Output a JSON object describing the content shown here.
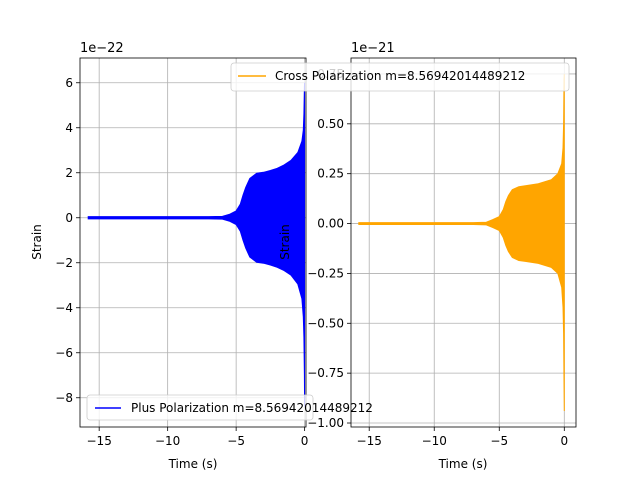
{
  "chart_data": [
    {
      "type": "line",
      "title": "",
      "xlabel": "Time (s)",
      "ylabel": "Strain",
      "offset_text": "1e−22",
      "scale": 1e-22,
      "xlim": [
        -16.4,
        0.1
      ],
      "ylim": [
        -9.3,
        7.1
      ],
      "xticks": [
        -15,
        -10,
        -5,
        0
      ],
      "xtick_labels": [
        "−15",
        "−10",
        "−5",
        "0"
      ],
      "yticks": [
        -8,
        -6,
        -4,
        -2,
        0,
        2,
        4,
        6
      ],
      "ytick_labels": [
        "−8",
        "−6",
        "−4",
        "−2",
        "0",
        "2",
        "4",
        "6"
      ],
      "grid": true,
      "legend_position": "lower left",
      "series": [
        {
          "name": "Plus Polarization m=8.56942014489212",
          "color": "#0000ff",
          "envelope": {
            "t": [
              -15.8,
              -10.0,
              -7.0,
              -6.0,
              -5.5,
              -5.0,
              -4.7,
              -4.5,
              -4.3,
              -4.0,
              -3.5,
              -3.0,
              -2.5,
              -2.0,
              -1.5,
              -1.0,
              -0.5,
              -0.2,
              -0.1,
              -0.05,
              -0.02,
              0.0
            ],
            "upper": [
              0.05,
              0.05,
              0.05,
              0.06,
              0.15,
              0.3,
              0.6,
              1.0,
              1.35,
              1.75,
              1.98,
              2.02,
              2.1,
              2.2,
              2.35,
              2.55,
              2.9,
              3.4,
              3.9,
              4.6,
              5.8,
              6.0
            ],
            "lower": [
              -0.05,
              -0.05,
              -0.05,
              -0.06,
              -0.15,
              -0.3,
              -0.6,
              -1.0,
              -1.35,
              -1.75,
              -1.98,
              -2.02,
              -2.1,
              -2.2,
              -2.35,
              -2.55,
              -2.95,
              -3.6,
              -4.4,
              -5.3,
              -7.0,
              -8.4
            ]
          }
        }
      ]
    },
    {
      "type": "line",
      "title": "",
      "xlabel": "Time (s)",
      "ylabel": "Strain",
      "offset_text": "1e−21",
      "scale": 1e-21,
      "xlim": [
        -16.4,
        0.9
      ],
      "ylim": [
        -1.02,
        0.83
      ],
      "xticks": [
        -15,
        -10,
        -5,
        0
      ],
      "xtick_labels": [
        "−15",
        "−10",
        "−5",
        "0"
      ],
      "yticks": [
        -1.0,
        -0.75,
        -0.5,
        -0.25,
        0.0,
        0.25,
        0.5,
        0.75
      ],
      "ytick_labels": [
        "−1.00",
        "−0.75",
        "−0.50",
        "−0.25",
        "0.00",
        "0.25",
        "0.50",
        "0.75"
      ],
      "grid": true,
      "legend_position": "upper right",
      "series": [
        {
          "name": "Cross Polarization m=8.56942014489212",
          "color": "#ffa500",
          "envelope": {
            "t": [
              -15.8,
              -10.0,
              -7.0,
              -6.0,
              -5.5,
              -5.0,
              -4.7,
              -4.5,
              -4.3,
              -4.0,
              -3.5,
              -3.0,
              -2.5,
              -2.0,
              -1.5,
              -1.0,
              -0.5,
              -0.2,
              -0.1,
              -0.05,
              -0.02,
              0.0
            ],
            "upper": [
              0.005,
              0.005,
              0.005,
              0.007,
              0.02,
              0.035,
              0.07,
              0.11,
              0.14,
              0.17,
              0.185,
              0.19,
              0.195,
              0.2,
              0.21,
              0.22,
              0.25,
              0.3,
              0.38,
              0.5,
              0.72,
              0.75
            ],
            "lower": [
              -0.005,
              -0.005,
              -0.005,
              -0.007,
              -0.02,
              -0.035,
              -0.07,
              -0.11,
              -0.14,
              -0.17,
              -0.185,
              -0.19,
              -0.195,
              -0.2,
              -0.21,
              -0.22,
              -0.25,
              -0.32,
              -0.42,
              -0.55,
              -0.8,
              -0.94
            ]
          }
        }
      ]
    }
  ]
}
